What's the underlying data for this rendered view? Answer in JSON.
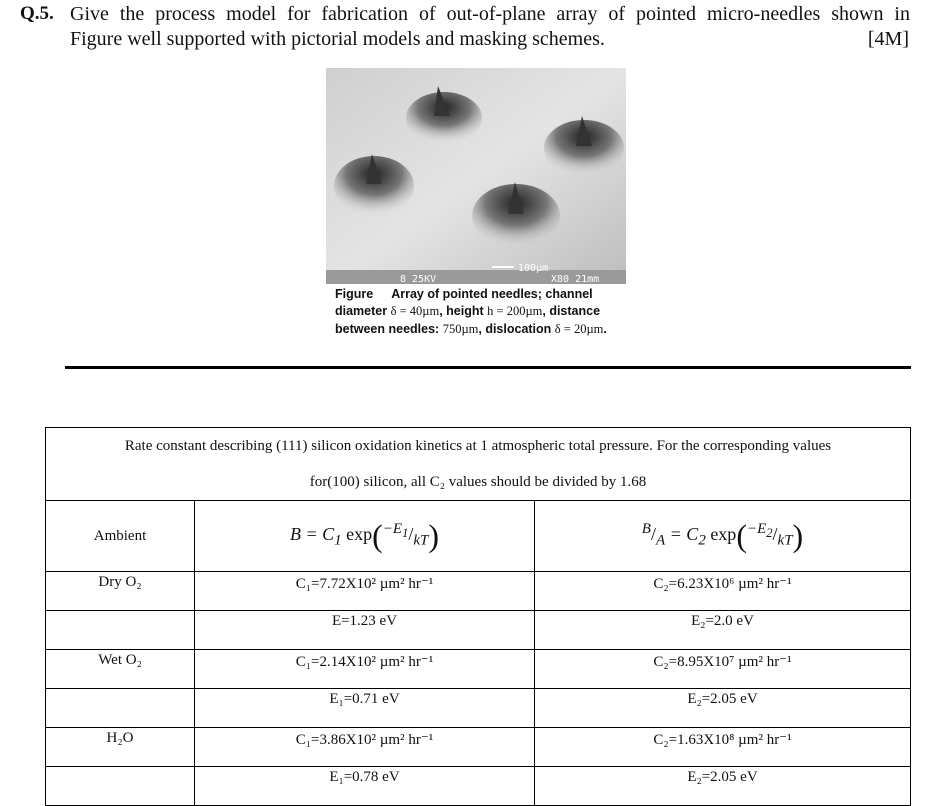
{
  "question": {
    "number": "Q.5.",
    "line1": "Give the process model for fabrication of out-of-plane array of pointed micro-needles shown in",
    "line2": "Figure well supported with pictorial models and masking schemes.",
    "marks": "[4M]"
  },
  "figure": {
    "sem_scale": "100µm",
    "sem_info_left": "8  25KV",
    "sem_info_right": "X80  21mm",
    "caption_label": "Figure",
    "caption_l1": "Array of pointed needles; channel",
    "caption_l2a": "diameter ",
    "caption_l2b": "δ = 40µm",
    "caption_l2c": ", height ",
    "caption_l2d": "h = 200µm",
    "caption_l2e": ", distance",
    "caption_l3a": "between needles: ",
    "caption_l3b": "750µm",
    "caption_l3c": ", dislocation ",
    "caption_l3d": "δ = 20µm",
    "caption_l3e": "."
  },
  "table": {
    "title_l1": "Rate constant describing (111) silicon oxidation kinetics at 1 atmospheric total pressure. For the corresponding values",
    "title_l2": "for(100) silicon, all C₂ values should be divided by 1.68",
    "ambient_label": "Ambient",
    "formula1": {
      "lhs": "B = C",
      "sub": "1",
      "exp": " exp",
      "num": "−E",
      "nsub": "1",
      "den": "kT"
    },
    "formula2": {
      "lhs": "B",
      "slash": "/",
      "lhs2": "A",
      "eq": " = C",
      "sub": "2",
      "exp": " exp",
      "num": "−E",
      "nsub": "2",
      "den": "kT"
    },
    "rows": [
      {
        "ambient": "Dry O₂",
        "c1": "C₁=7.72X10² µm² hr⁻¹",
        "c2": "C₂=6.23X10⁶ µm² hr⁻¹"
      },
      {
        "ambient": "",
        "c1": "E=1.23 eV",
        "c2": "E₂=2.0 eV"
      },
      {
        "ambient": "Wet O₂",
        "c1": "C₁=2.14X10² µm² hr⁻¹",
        "c2": "C₂=8.95X10⁷ µm² hr⁻¹"
      },
      {
        "ambient": "",
        "c1": "E₁=0.71 eV",
        "c2": "E₂=2.05 eV"
      },
      {
        "ambient": "H₂O",
        "c1": "C₁=3.86X10² µm² hr⁻¹",
        "c2": "C₂=1.63X10⁸ µm² hr⁻¹"
      },
      {
        "ambient": "",
        "c1": "E₁=0.78 eV",
        "c2": "E₂=2.05 eV"
      }
    ]
  }
}
